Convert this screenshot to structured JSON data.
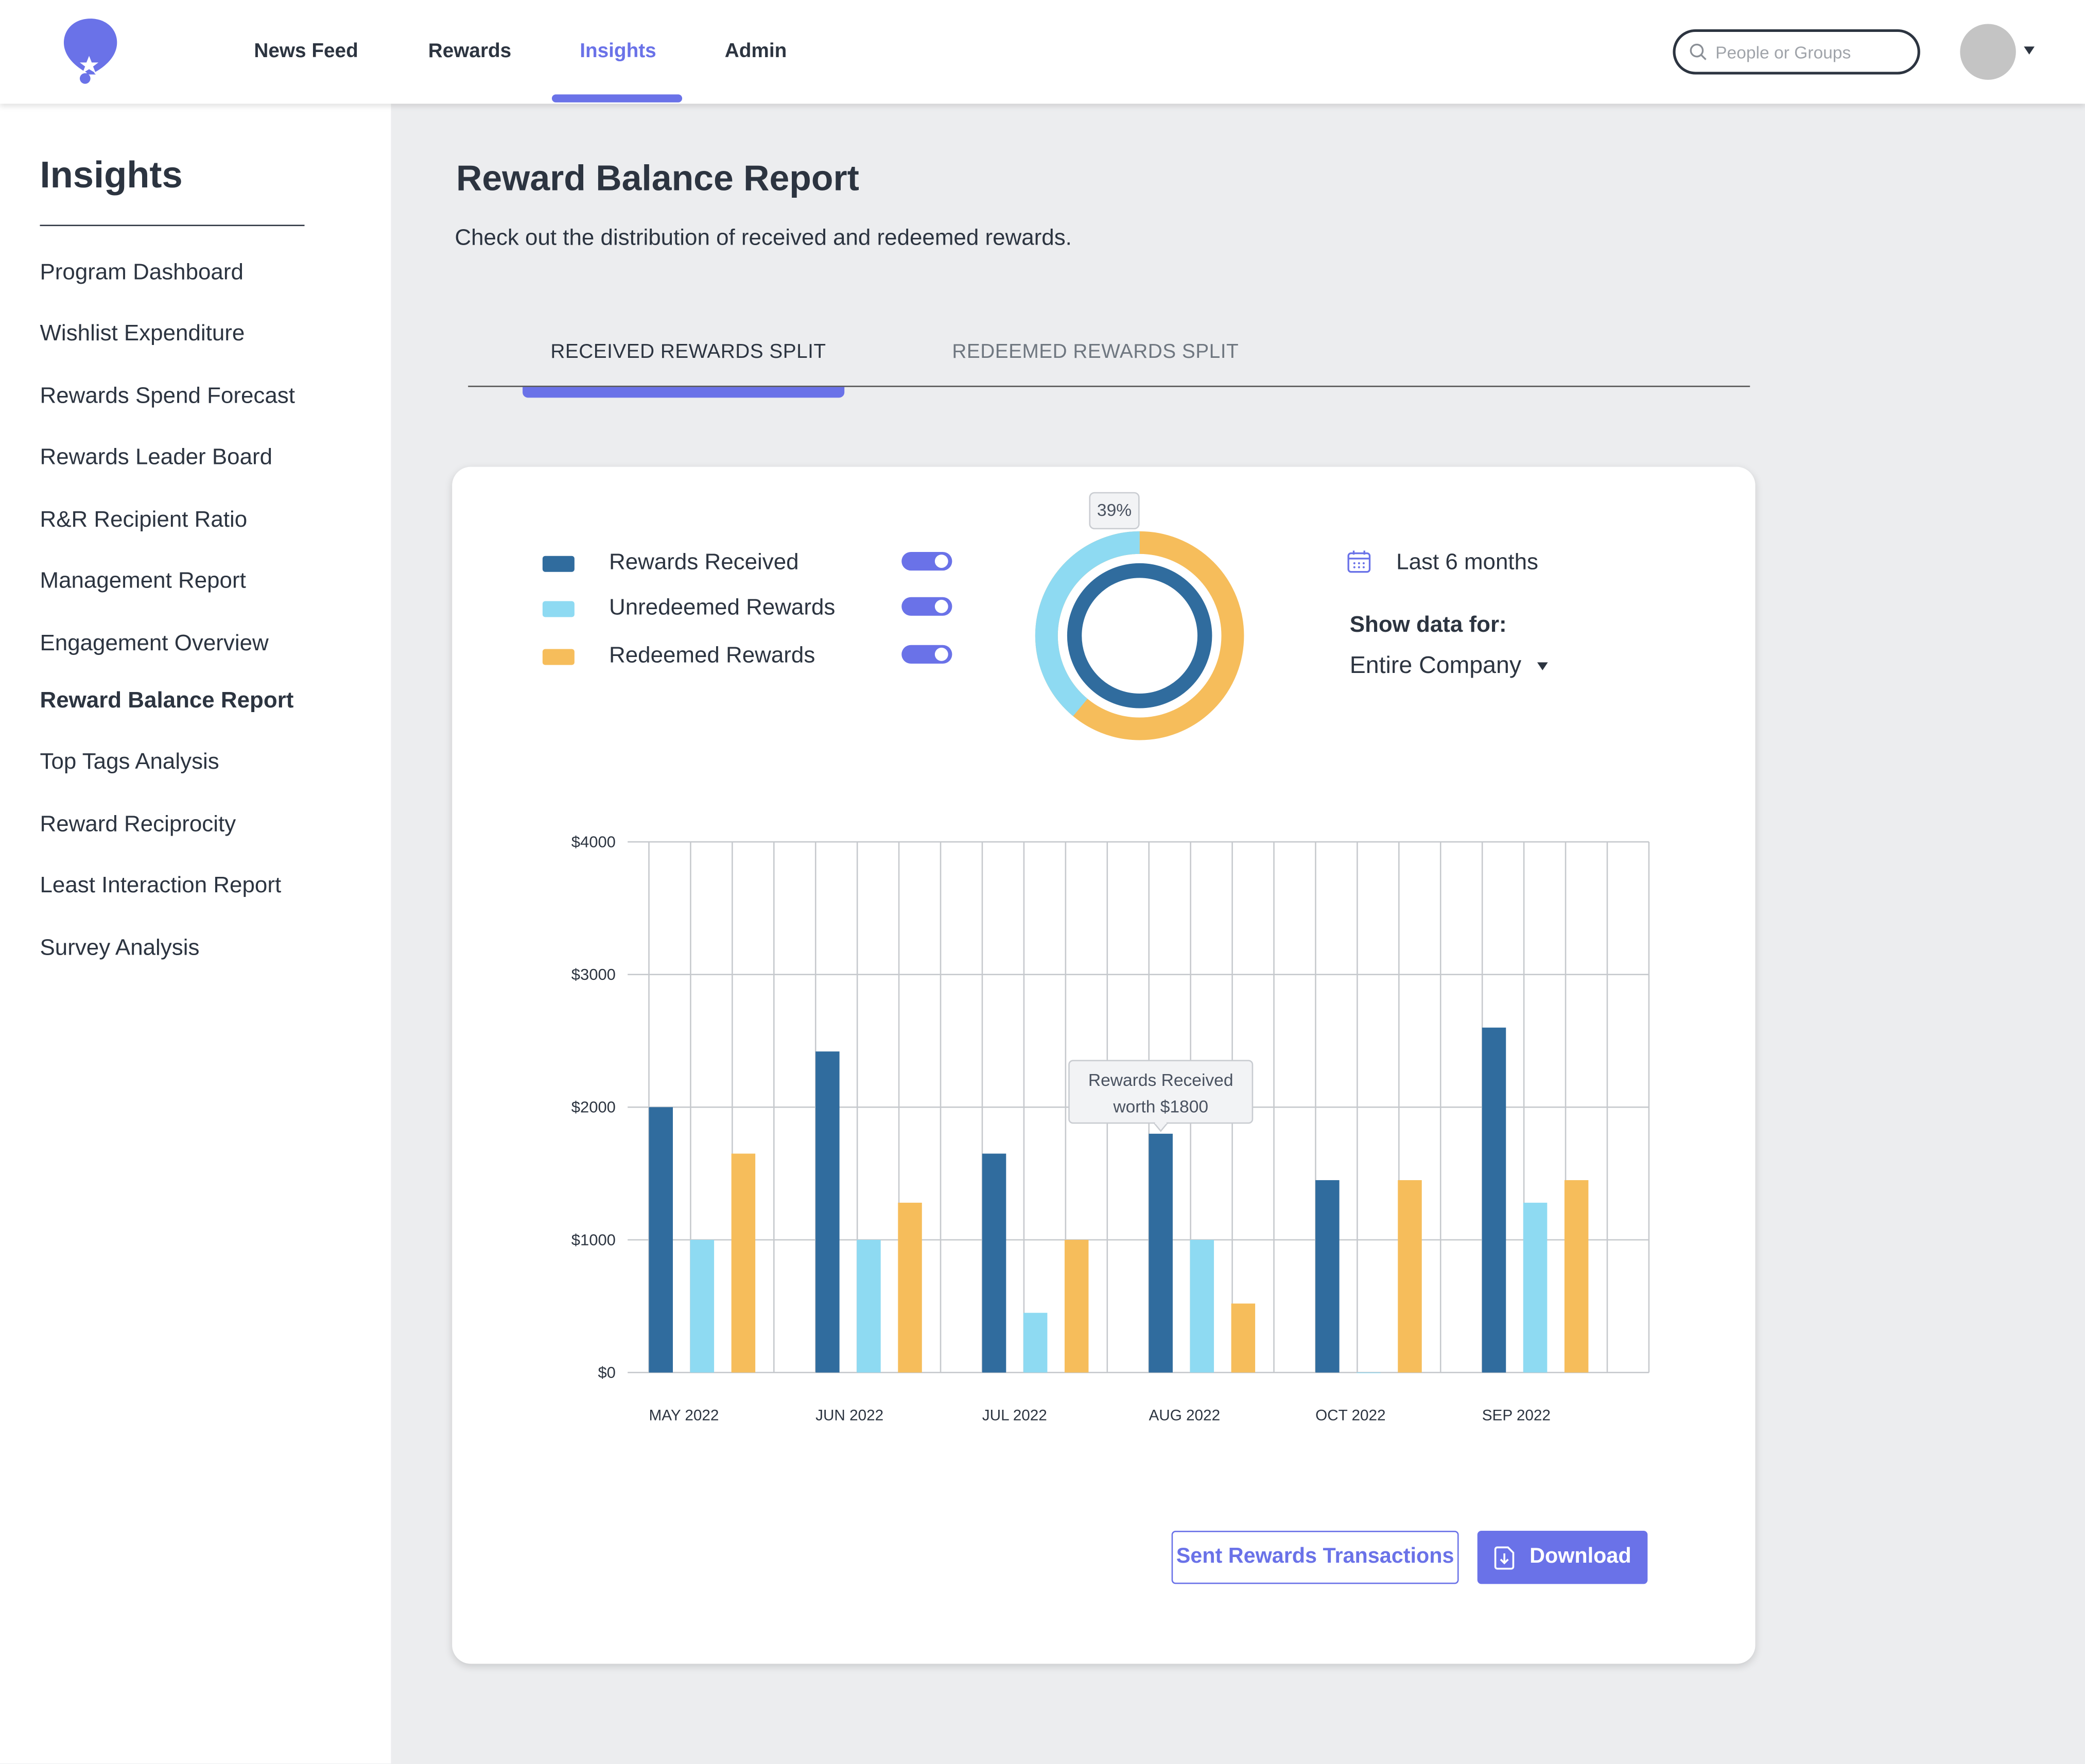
{
  "nav": {
    "items": [
      {
        "label": "News Feed",
        "active": false
      },
      {
        "label": "Rewards",
        "active": false
      },
      {
        "label": "Insights",
        "active": true
      },
      {
        "label": "Admin",
        "active": false
      }
    ],
    "search_placeholder": "People or Groups",
    "logo_icon": "balloon-star-logo"
  },
  "sidebar": {
    "title": "Insights",
    "items": [
      {
        "label": "Program Dashboard",
        "active": false
      },
      {
        "label": "Wishlist Expenditure",
        "active": false
      },
      {
        "label": "Rewards Spend Forecast",
        "active": false
      },
      {
        "label": "Rewards Leader Board",
        "active": false
      },
      {
        "label": "R&R Recipient Ratio",
        "active": false
      },
      {
        "label": "Management Report",
        "active": false
      },
      {
        "label": "Engagement Overview",
        "active": false
      },
      {
        "label": "Reward Balance Report",
        "active": true
      },
      {
        "label": "Top Tags Analysis",
        "active": false
      },
      {
        "label": "Reward Reciprocity",
        "active": false
      },
      {
        "label": "Least Interaction Report",
        "active": false
      },
      {
        "label": "Survey Analysis",
        "active": false
      }
    ]
  },
  "main": {
    "title": "Reward Balance Report",
    "subtitle": "Check out the distribution of received and redeemed rewards.",
    "tabs": [
      {
        "label": "RECEIVED REWARDS SPLIT",
        "active": true
      },
      {
        "label": "REDEEMED REWARDS SPLIT",
        "active": false
      }
    ]
  },
  "card": {
    "legend": [
      {
        "label": "Rewards Received",
        "color": "#306c9e",
        "enabled": true
      },
      {
        "label": "Unredeemed Rewards",
        "color": "#8edaf2",
        "enabled": true
      },
      {
        "label": "Redeemed Rewards",
        "color": "#f6bd5b",
        "enabled": true
      }
    ],
    "donut": {
      "tooltip": "39%",
      "unredeemed_fraction": 0.39,
      "colors": {
        "inner": "#306c9e",
        "unredeemed": "#8edaf2",
        "redeemed": "#f6bd5b"
      }
    },
    "period": {
      "label": "Last 6 months",
      "icon": "calendar-icon"
    },
    "show_data_label": "Show data for:",
    "scope_value": "Entire Company",
    "buttons": {
      "sent_transactions": "Sent Rewards Transactions",
      "download": "Download",
      "download_icon": "download-file-icon"
    }
  },
  "chart_data": {
    "type": "bar",
    "categories": [
      "MAY 2022",
      "JUN 2022",
      "JUL 2022",
      "AUG 2022",
      "OCT 2022",
      "SEP 2022"
    ],
    "series": [
      {
        "name": "Rewards Received",
        "color": "#306c9e",
        "values": [
          2000,
          2420,
          1650,
          1800,
          1450,
          2600
        ]
      },
      {
        "name": "Unredeemed Rewards",
        "color": "#8edaf2",
        "values": [
          1000,
          1000,
          450,
          1000,
          0,
          1280
        ]
      },
      {
        "name": "Redeemed Rewards",
        "color": "#f6bd5b",
        "values": [
          1650,
          1280,
          1000,
          520,
          1450,
          1450
        ]
      }
    ],
    "ylim": [
      0,
      4000
    ],
    "yticks": [
      {
        "value": 0,
        "label": "$0"
      },
      {
        "value": 1000,
        "label": "$1000"
      },
      {
        "value": 2000,
        "label": "$2000"
      },
      {
        "value": 3000,
        "label": "$3000"
      },
      {
        "value": 4000,
        "label": "$4000"
      }
    ],
    "grid": true,
    "tooltip": {
      "category_index": 3,
      "series_index": 0,
      "line1": "Rewards Received",
      "line2": "worth $1800"
    }
  }
}
